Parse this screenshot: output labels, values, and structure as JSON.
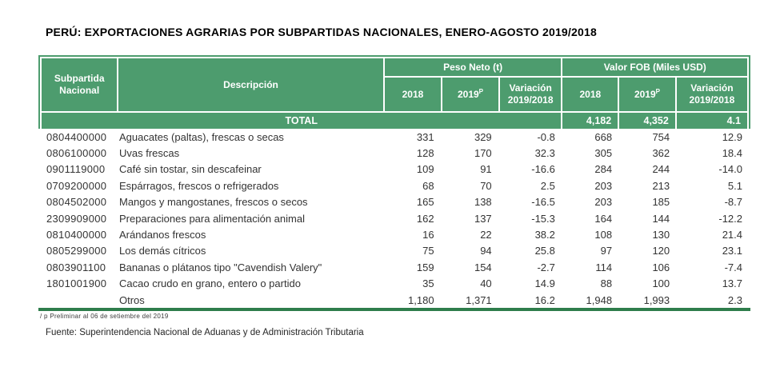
{
  "title": "PERÚ: EXPORTACIONES AGRARIAS POR SUBPARTIDAS NACIONALES, ENERO-AGOSTO 2019/2018",
  "table": {
    "headers": {
      "subpartida_line1": "Subpartida",
      "subpartida_line2": "Nacional",
      "descripcion": "Descripción",
      "peso_neto_group": "Peso Neto (t)",
      "valor_fob_group": "Valor FOB (Miles USD)",
      "col_2018": "2018",
      "col_2019": "2019",
      "col_2019_sup": "P",
      "variacion_line1": "Variación",
      "variacion_line2": "2019/2018"
    },
    "total": {
      "label": "TOTAL",
      "fob_2018": "4,182",
      "fob_2019": "4,352",
      "fob_var": "4.1"
    },
    "rows": [
      {
        "code": "0804400000",
        "desc": "Aguacates (paltas), frescas o secas",
        "pn_2018": "331",
        "pn_2019": "329",
        "pn_var": "-0.8",
        "fob_2018": "668",
        "fob_2019": "754",
        "fob_var": "12.9"
      },
      {
        "code": "0806100000",
        "desc": "Uvas frescas",
        "pn_2018": "128",
        "pn_2019": "170",
        "pn_var": "32.3",
        "fob_2018": "305",
        "fob_2019": "362",
        "fob_var": "18.4"
      },
      {
        "code": "0901119000",
        "desc": "Café sin tostar, sin descafeinar",
        "pn_2018": "109",
        "pn_2019": "91",
        "pn_var": "-16.6",
        "fob_2018": "284",
        "fob_2019": "244",
        "fob_var": "-14.0"
      },
      {
        "code": "0709200000",
        "desc": "Espárragos, frescos o refrigerados",
        "pn_2018": "68",
        "pn_2019": "70",
        "pn_var": "2.5",
        "fob_2018": "203",
        "fob_2019": "213",
        "fob_var": "5.1"
      },
      {
        "code": "0804502000",
        "desc": "Mangos y mangostanes, frescos o secos",
        "pn_2018": "165",
        "pn_2019": "138",
        "pn_var": "-16.5",
        "fob_2018": "203",
        "fob_2019": "185",
        "fob_var": "-8.7"
      },
      {
        "code": "2309909000",
        "desc": "Preparaciones para alimentación animal",
        "pn_2018": "162",
        "pn_2019": "137",
        "pn_var": "-15.3",
        "fob_2018": "164",
        "fob_2019": "144",
        "fob_var": "-12.2"
      },
      {
        "code": "0810400000",
        "desc": "Arándanos frescos",
        "pn_2018": "16",
        "pn_2019": "22",
        "pn_var": "38.2",
        "fob_2018": "108",
        "fob_2019": "130",
        "fob_var": "21.4"
      },
      {
        "code": "0805299000",
        "desc": "Los demás cítricos",
        "pn_2018": "75",
        "pn_2019": "94",
        "pn_var": "25.8",
        "fob_2018": "97",
        "fob_2019": "120",
        "fob_var": "23.1"
      },
      {
        "code": "0803901100",
        "desc": "Bananas o plátanos tipo \"Cavendish Valery\"",
        "pn_2018": "159",
        "pn_2019": "154",
        "pn_var": "-2.7",
        "fob_2018": "114",
        "fob_2019": "106",
        "fob_var": "-7.4"
      },
      {
        "code": "1801001900",
        "desc": "Cacao crudo en grano, entero o partido",
        "pn_2018": "35",
        "pn_2019": "40",
        "pn_var": "14.9",
        "fob_2018": "88",
        "fob_2019": "100",
        "fob_var": "13.7"
      },
      {
        "code": "",
        "desc": "Otros",
        "pn_2018": "1,180",
        "pn_2019": "1,371",
        "pn_var": "16.2",
        "fob_2018": "1,948",
        "fob_2019": "1,993",
        "fob_var": "2.3"
      }
    ]
  },
  "footnote": "/ p Preliminar al 06 de setiembre del 2019",
  "source": "Fuente: Superintendencia Nacional de Aduanas y de Administración Tributaria",
  "colors": {
    "header_green": "#4d9c6e",
    "line_green": "#2e7d4b",
    "text_color": "#333333"
  }
}
